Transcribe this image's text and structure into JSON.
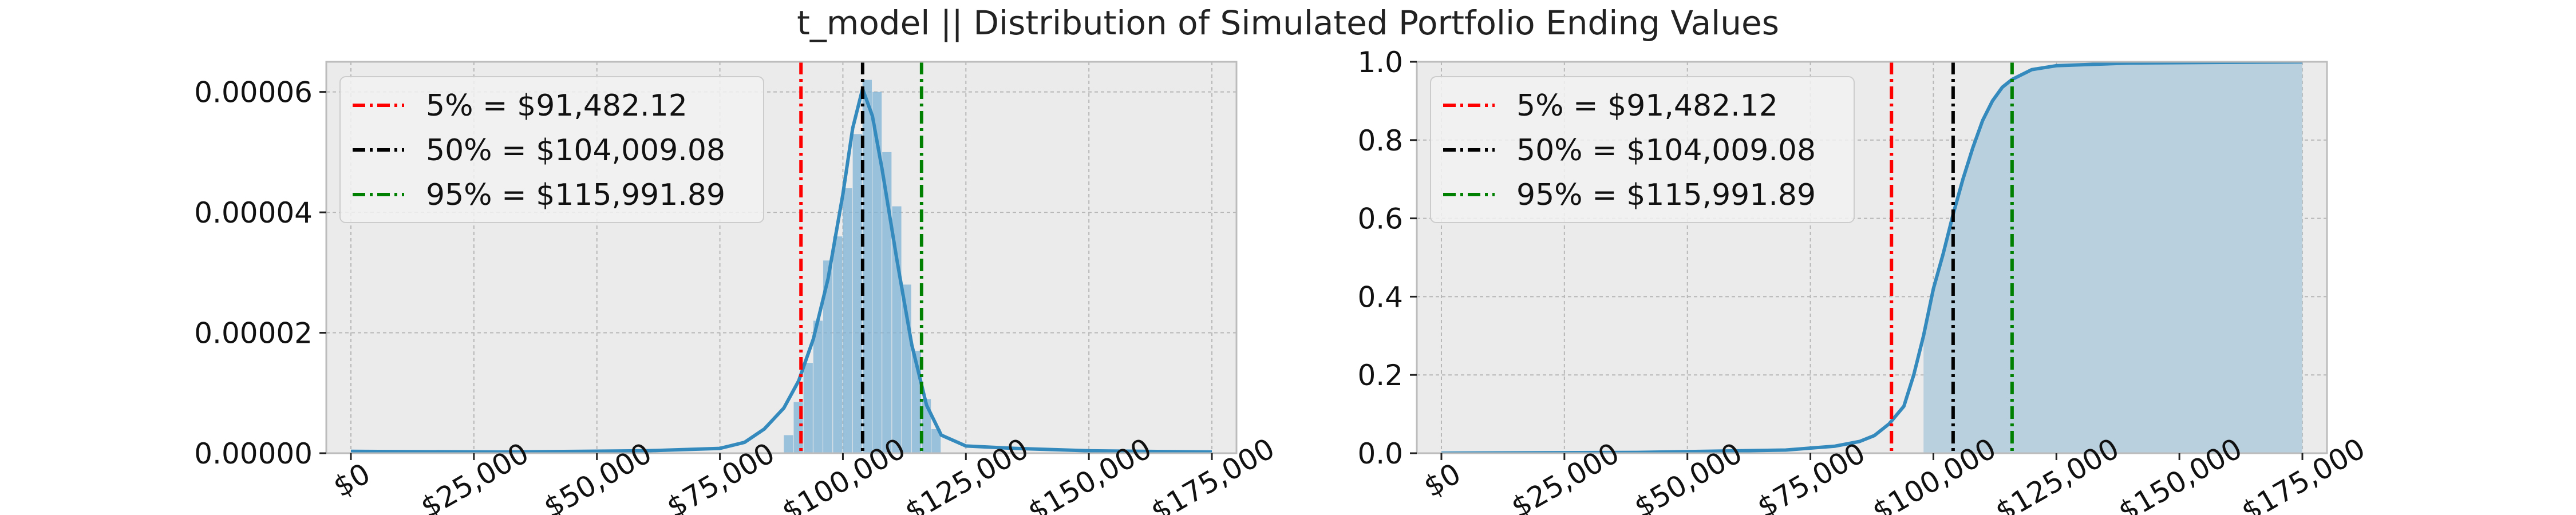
{
  "figure": {
    "suptitle": "t_model || Distribution of Simulated Portfolio Ending Values"
  },
  "colors": {
    "axes_bg": "#ebebeb",
    "grid": "#b7b7b7",
    "spine": "#bcbcbc",
    "kde_line": "#348abd",
    "hist_fill": "#7fb3d5",
    "cdf_fill": "#b9d0df",
    "p5": "#ff0000",
    "p50": "#000000",
    "p95": "#008000"
  },
  "chart_data": [
    {
      "type": "area",
      "subtype": "histogram_with_kde",
      "title": "",
      "xlabel": "",
      "ylabel": "",
      "xlim": [
        -5000,
        180000
      ],
      "ylim": [
        0,
        6.5e-05
      ],
      "yticks": [
        0,
        2e-05,
        4e-05,
        6e-05
      ],
      "ytick_labels": [
        "0.00000",
        "0.00002",
        "0.00004",
        "0.00006"
      ],
      "xticks": [
        0,
        25000,
        50000,
        75000,
        100000,
        125000,
        150000,
        175000
      ],
      "xtick_labels": [
        "$0",
        "$25,000",
        "$50,000",
        "$75,000",
        "$100,000",
        "$125,000",
        "$150,000",
        "$175,000"
      ],
      "grid": true,
      "legend_position": "upper-left",
      "histogram": {
        "bin_edges": [
          88000,
          90000,
          92000,
          94000,
          96000,
          98000,
          100000,
          102000,
          104000,
          106000,
          108000,
          110000,
          112000,
          114000,
          116000,
          118000,
          120000
        ],
        "density": [
          3e-06,
          8.5e-06,
          1.5e-05,
          2.2e-05,
          3.2e-05,
          3.6e-05,
          4.4e-05,
          5.3e-05,
          6.2e-05,
          6e-05,
          5e-05,
          4.1e-05,
          2.8e-05,
          1.7e-05,
          9e-06,
          4e-06
        ]
      },
      "kde": {
        "x": [
          0,
          30000,
          60000,
          75000,
          80000,
          84000,
          88000,
          91000,
          94000,
          97000,
          100000,
          102000,
          104000,
          106000,
          108000,
          111000,
          114000,
          117000,
          120000,
          125000,
          135000,
          150000,
          175000
        ],
        "y": [
          3e-07,
          2e-07,
          4e-07,
          8e-07,
          1.8e-06,
          4e-06,
          7.5e-06,
          1.2e-05,
          1.9e-05,
          2.9e-05,
          4.3e-05,
          5.4e-05,
          6.05e-05,
          5.6e-05,
          4.7e-05,
          3.2e-05,
          1.8e-05,
          8e-06,
          3e-06,
          1.2e-06,
          8e-07,
          4e-07,
          2e-07
        ]
      },
      "percentile_lines": [
        {
          "x": 91482.12,
          "label": "5% = $91,482.12",
          "color": "#ff0000"
        },
        {
          "x": 104009.08,
          "label": "50% = $104,009.08",
          "color": "#000000"
        },
        {
          "x": 115991.89,
          "label": "95% = $115,991.89",
          "color": "#008000"
        }
      ]
    },
    {
      "type": "area",
      "subtype": "cumulative_distribution",
      "title": "",
      "xlabel": "",
      "ylabel": "",
      "xlim": [
        -5000,
        180000
      ],
      "ylim": [
        0,
        1.0
      ],
      "yticks": [
        0,
        0.2,
        0.4,
        0.6,
        0.8,
        1.0
      ],
      "ytick_labels": [
        "0.0",
        "0.2",
        "0.4",
        "0.6",
        "0.8",
        "1.0"
      ],
      "xticks": [
        0,
        25000,
        50000,
        75000,
        100000,
        125000,
        150000,
        175000
      ],
      "xtick_labels": [
        "$0",
        "$25,000",
        "$50,000",
        "$75,000",
        "$100,000",
        "$125,000",
        "$150,000",
        "$175,000"
      ],
      "grid": true,
      "legend_position": "upper-left",
      "fill_range": [
        98000,
        175000
      ],
      "cdf": {
        "x": [
          0,
          40000,
          70000,
          80000,
          85000,
          88000,
          91000,
          94000,
          96000,
          98000,
          100000,
          102000,
          104000,
          106000,
          108000,
          110000,
          112000,
          114000,
          116000,
          120000,
          125000,
          140000,
          175000
        ],
        "y": [
          0,
          0.002,
          0.008,
          0.018,
          0.03,
          0.045,
          0.075,
          0.12,
          0.2,
          0.3,
          0.42,
          0.51,
          0.61,
          0.7,
          0.78,
          0.85,
          0.9,
          0.935,
          0.955,
          0.98,
          0.99,
          0.997,
          1.0
        ]
      },
      "percentile_lines": [
        {
          "x": 91482.12,
          "label": "5% = $91,482.12",
          "color": "#ff0000"
        },
        {
          "x": 104009.08,
          "label": "50% = $104,009.08",
          "color": "#000000"
        },
        {
          "x": 115991.89,
          "label": "95% = $115,991.89",
          "color": "#008000"
        }
      ]
    }
  ]
}
